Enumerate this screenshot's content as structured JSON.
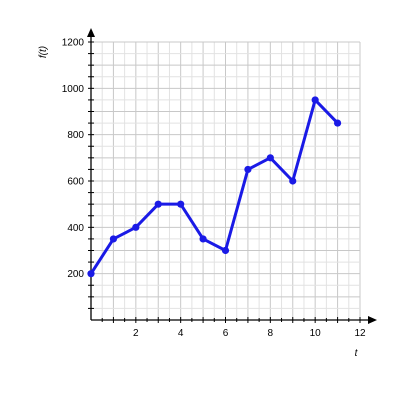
{
  "chart_data": {
    "type": "line",
    "xlabel": "t",
    "ylabel": "f(t)",
    "xlim": [
      0,
      12
    ],
    "ylim": [
      0,
      1200
    ],
    "x_ticks": [
      2,
      4,
      6,
      8,
      10,
      12
    ],
    "y_ticks": [
      200,
      400,
      600,
      800,
      1000,
      1200
    ],
    "x_minor_step": 0.5,
    "y_minor_step": 50,
    "grid": true,
    "series": [
      {
        "x": [
          0,
          1,
          2,
          3,
          4,
          5,
          6,
          7,
          8,
          9,
          10,
          11
        ],
        "values": [
          200,
          350,
          400,
          500,
          500,
          350,
          300,
          650,
          700,
          600,
          950,
          850
        ],
        "color": "#1a1ae6"
      }
    ]
  }
}
